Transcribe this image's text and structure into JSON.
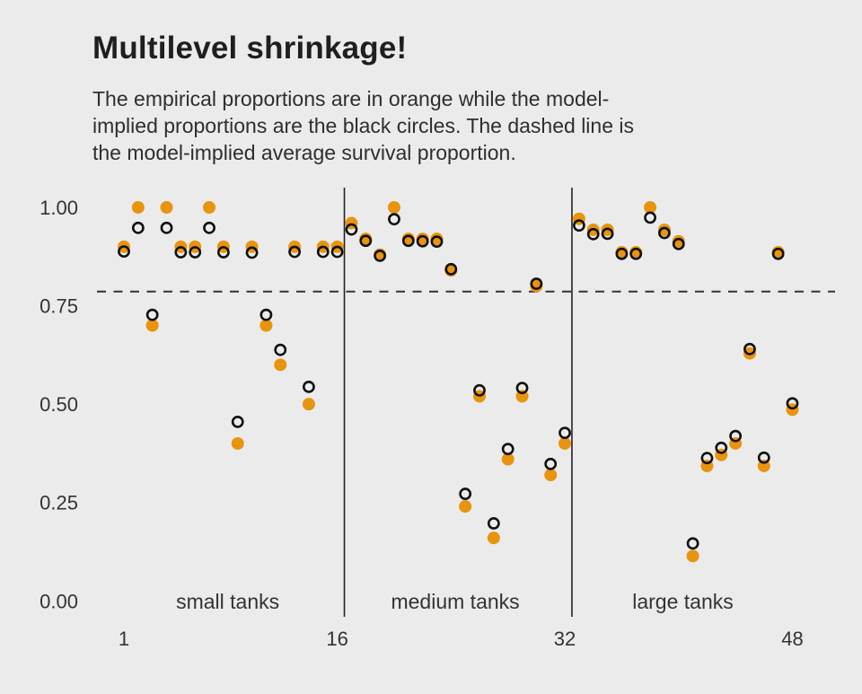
{
  "header": {
    "title": "Multilevel shrinkage!",
    "subtitle_lines": [
      "The empirical proportions are in orange while the model-",
      "implied proportions are the black circles. The dashed line is",
      "the model-implied average survival proportion."
    ]
  },
  "chart_data": {
    "type": "scatter",
    "title": "Multilevel shrinkage!",
    "x_is_tank_number": true,
    "x": [
      1,
      2,
      3,
      4,
      5,
      6,
      7,
      8,
      9,
      10,
      11,
      12,
      13,
      14,
      15,
      16,
      17,
      18,
      19,
      20,
      21,
      22,
      23,
      24,
      25,
      26,
      27,
      28,
      29,
      30,
      31,
      32,
      33,
      34,
      35,
      36,
      37,
      38,
      39,
      40,
      41,
      42,
      43,
      44,
      45,
      46,
      47,
      48
    ],
    "series": [
      {
        "name": "empirical proportion",
        "color": "#E8940E",
        "marker": "filled-circle",
        "values": [
          0.9,
          1.0,
          0.7,
          1.0,
          0.9,
          0.9,
          1.0,
          0.9,
          0.4,
          0.9,
          0.7,
          0.6,
          0.9,
          0.5,
          0.9,
          0.9,
          0.96,
          0.92,
          0.88,
          1.0,
          0.92,
          0.92,
          0.92,
          0.84,
          0.24,
          0.52,
          0.16,
          0.36,
          0.52,
          0.8,
          0.32,
          0.4,
          0.971,
          0.943,
          0.943,
          0.886,
          0.886,
          1.0,
          0.943,
          0.914,
          0.114,
          0.343,
          0.371,
          0.4,
          0.629,
          0.343,
          0.886,
          0.486
        ]
      },
      {
        "name": "model-implied proportion",
        "color": "#111111",
        "marker": "open-circle",
        "values": [
          0.888,
          0.948,
          0.727,
          0.948,
          0.886,
          0.886,
          0.948,
          0.886,
          0.455,
          0.885,
          0.727,
          0.638,
          0.887,
          0.544,
          0.887,
          0.887,
          0.944,
          0.915,
          0.877,
          0.97,
          0.915,
          0.914,
          0.913,
          0.843,
          0.272,
          0.535,
          0.197,
          0.386,
          0.541,
          0.806,
          0.348,
          0.427,
          0.954,
          0.932,
          0.933,
          0.882,
          0.882,
          0.974,
          0.935,
          0.907,
          0.146,
          0.363,
          0.389,
          0.419,
          0.64,
          0.364,
          0.882,
          0.502
        ]
      }
    ],
    "hline": {
      "value": 0.786,
      "style": "dashed",
      "meaning": "model-implied average survival proportion"
    },
    "dividers_at_tank": [
      16.5,
      32.5
    ],
    "groups": [
      {
        "label": "small tanks",
        "center_tank": 8.3
      },
      {
        "label": "medium tanks",
        "center_tank": 24.3
      },
      {
        "label": "large tanks",
        "center_tank": 40.3
      }
    ],
    "xticks": {
      "values": [
        1,
        16,
        32,
        48
      ],
      "labels": [
        "1",
        "16",
        "32",
        "48"
      ]
    },
    "yticks": {
      "values": [
        0,
        0.25,
        0.5,
        0.75,
        1.0
      ],
      "labels": [
        "0.00",
        "0.25",
        "0.50",
        "0.75",
        "1.00"
      ]
    },
    "ylim": [
      0,
      1.05
    ],
    "grid": "off",
    "legend": "none",
    "colors": {
      "background": "#EBEBEB",
      "axis_text": "#333333",
      "divider_line": "#222222",
      "dashed_line": "#333333"
    }
  }
}
